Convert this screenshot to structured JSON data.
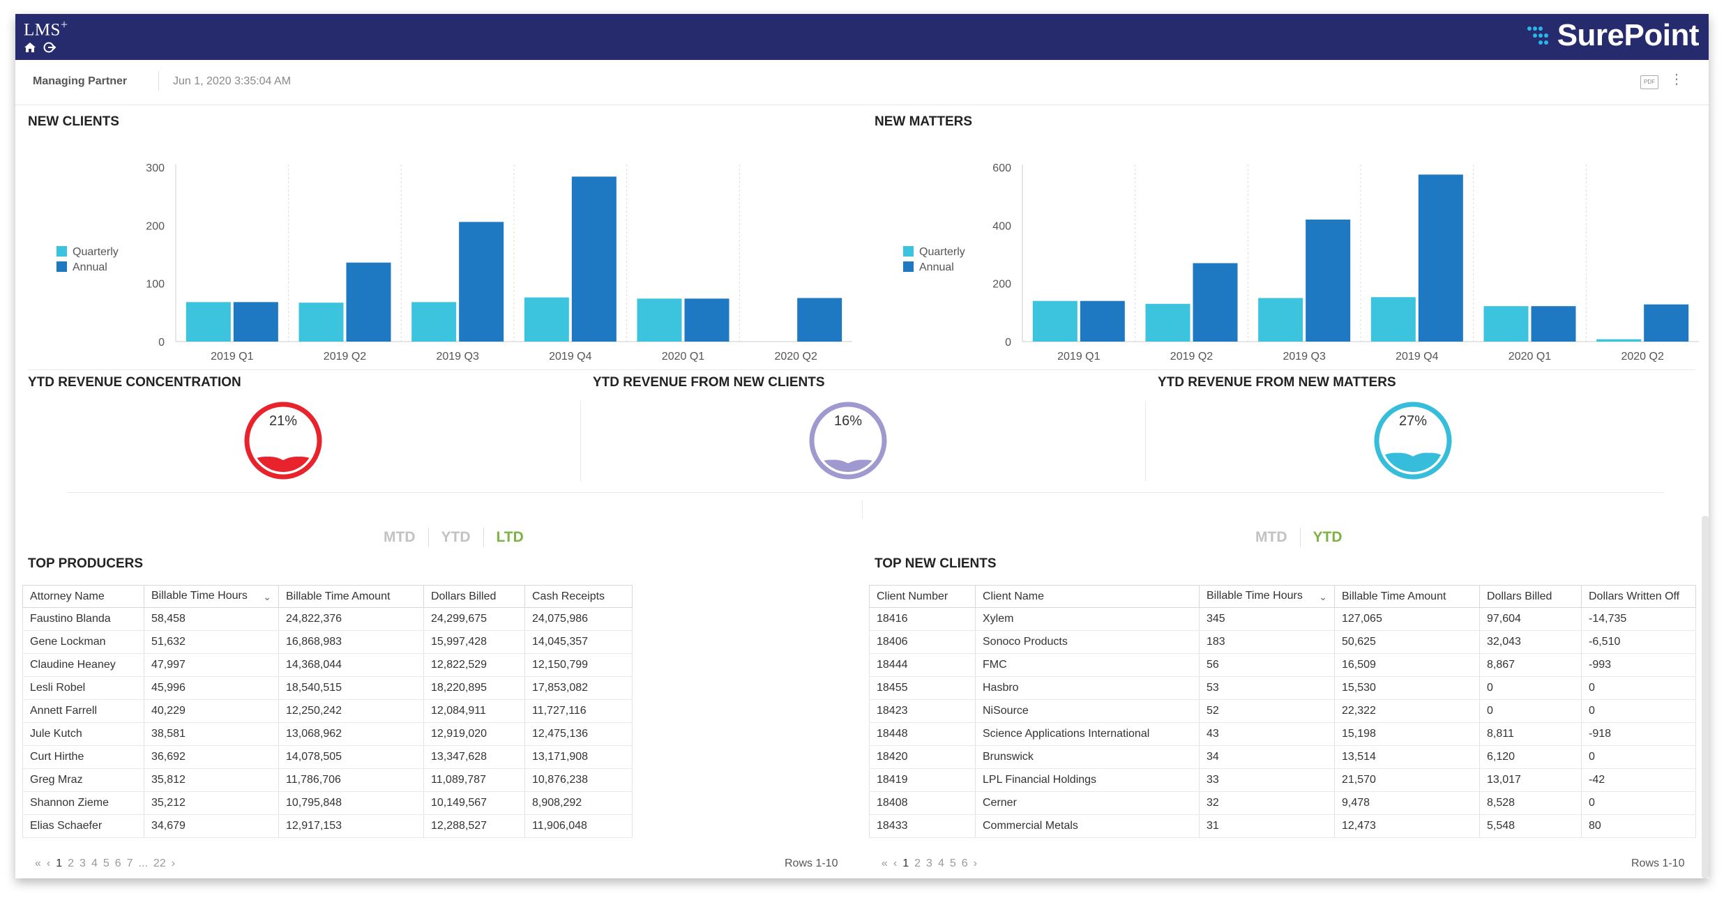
{
  "header": {
    "app_name": "LMS",
    "app_suffix": "+",
    "brand": "SurePoint",
    "role": "Managing Partner",
    "timestamp": "Jun 1, 2020 3:35:04 AM",
    "pdf_label": "PDF",
    "more_label": "⋮"
  },
  "colors": {
    "quarterly": "#3cc3de",
    "annual": "#1e78c2",
    "navy": "#262b6e",
    "ltd_active": "#7cb342"
  },
  "charts": {
    "new_clients": {
      "title": "NEW CLIENTS",
      "legend": [
        "Quarterly",
        "Annual"
      ]
    },
    "new_matters": {
      "title": "NEW MATTERS",
      "legend": [
        "Quarterly",
        "Annual"
      ]
    }
  },
  "chart_data": [
    {
      "type": "bar",
      "title": "NEW CLIENTS",
      "categories": [
        "2019 Q1",
        "2019 Q2",
        "2019 Q3",
        "2019 Q4",
        "2020 Q1",
        "2020 Q2"
      ],
      "series": [
        {
          "name": "Quarterly",
          "values": [
            68,
            67,
            68,
            76,
            74,
            0
          ]
        },
        {
          "name": "Annual",
          "values": [
            68,
            136,
            206,
            284,
            74,
            75
          ]
        }
      ],
      "yticks": [
        0,
        100,
        200,
        300
      ],
      "ylim": [
        0,
        300
      ],
      "legend": "left"
    },
    {
      "type": "bar",
      "title": "NEW MATTERS",
      "categories": [
        "2019 Q1",
        "2019 Q2",
        "2019 Q3",
        "2019 Q4",
        "2020 Q1",
        "2020 Q2"
      ],
      "series": [
        {
          "name": "Quarterly",
          "values": [
            140,
            130,
            150,
            153,
            122,
            8
          ]
        },
        {
          "name": "Annual",
          "values": [
            140,
            270,
            420,
            575,
            122,
            128
          ]
        }
      ],
      "yticks": [
        0,
        200,
        400,
        600
      ],
      "ylim": [
        0,
        600
      ],
      "legend": "left"
    }
  ],
  "gauges": [
    {
      "title": "YTD REVENUE CONCENTRATION",
      "label": "21%",
      "value": 0.21,
      "color": "#e8232b"
    },
    {
      "title": "YTD REVENUE FROM NEW CLIENTS",
      "label": "16%",
      "value": 0.16,
      "color": "#9e9ad0"
    },
    {
      "title": "YTD REVENUE FROM NEW MATTERS",
      "label": "27%",
      "value": 0.27,
      "color": "#35bddb"
    }
  ],
  "producers": {
    "toggle": [
      "MTD",
      "YTD",
      "LTD"
    ],
    "active": "LTD",
    "title": "TOP PRODUCERS",
    "columns": [
      "Attorney Name",
      "Billable Time Hours",
      "Billable Time Amount",
      "Dollars Billed",
      "Cash Receipts"
    ],
    "rows": [
      [
        "Faustino Blanda",
        "58,458",
        "24,822,376",
        "24,299,675",
        "24,075,986"
      ],
      [
        "Gene Lockman",
        "51,632",
        "16,868,983",
        "15,997,428",
        "14,045,357"
      ],
      [
        "Claudine Heaney",
        "47,997",
        "14,368,044",
        "12,822,529",
        "12,150,799"
      ],
      [
        "Lesli Robel",
        "45,996",
        "18,540,515",
        "18,220,895",
        "17,853,082"
      ],
      [
        "Annett Farrell",
        "40,229",
        "12,250,242",
        "12,084,911",
        "11,727,116"
      ],
      [
        "Jule Kutch",
        "38,581",
        "13,068,962",
        "12,919,020",
        "12,475,136"
      ],
      [
        "Curt Hirthe",
        "36,692",
        "14,078,505",
        "13,347,628",
        "13,171,908"
      ],
      [
        "Greg Mraz",
        "35,812",
        "11,786,706",
        "11,089,787",
        "10,876,238"
      ],
      [
        "Shannon Zieme",
        "35,212",
        "10,795,848",
        "10,149,567",
        "8,908,292"
      ],
      [
        "Elias Schaefer",
        "34,679",
        "12,917,153",
        "12,288,527",
        "11,906,048"
      ]
    ],
    "pager": {
      "first": "«",
      "prev": "‹",
      "pages": [
        "1",
        "2",
        "3",
        "4",
        "5",
        "6",
        "7",
        "...",
        "22"
      ],
      "next": "›"
    },
    "rows_label": "Rows 1-10"
  },
  "new_clients_table": {
    "toggle": [
      "MTD",
      "YTD"
    ],
    "active": "YTD",
    "title": "TOP NEW CLIENTS",
    "columns": [
      "Client Number",
      "Client Name",
      "Billable Time Hours",
      "Billable Time Amount",
      "Dollars Billed",
      "Dollars Written Off"
    ],
    "rows": [
      [
        "18416",
        "Xylem",
        "345",
        "127,065",
        "97,604",
        "-14,735"
      ],
      [
        "18406",
        "Sonoco Products",
        "183",
        "50,625",
        "32,043",
        "-6,510"
      ],
      [
        "18444",
        "FMC",
        "56",
        "16,509",
        "8,867",
        "-993"
      ],
      [
        "18455",
        "Hasbro",
        "53",
        "15,530",
        "0",
        "0"
      ],
      [
        "18423",
        "NiSource",
        "52",
        "22,322",
        "0",
        "0"
      ],
      [
        "18448",
        "Science Applications International",
        "43",
        "15,198",
        "8,811",
        "-918"
      ],
      [
        "18420",
        "Brunswick",
        "34",
        "13,514",
        "6,120",
        "0"
      ],
      [
        "18419",
        "LPL Financial Holdings",
        "33",
        "21,570",
        "13,017",
        "-42"
      ],
      [
        "18408",
        "Cerner",
        "32",
        "9,478",
        "8,528",
        "0"
      ],
      [
        "18433",
        "Commercial Metals",
        "31",
        "12,473",
        "5,548",
        "80"
      ]
    ],
    "pager": {
      "first": "«",
      "prev": "‹",
      "pages": [
        "1",
        "2",
        "3",
        "4",
        "5",
        "6"
      ],
      "next": "›"
    },
    "rows_label": "Rows 1-10"
  }
}
